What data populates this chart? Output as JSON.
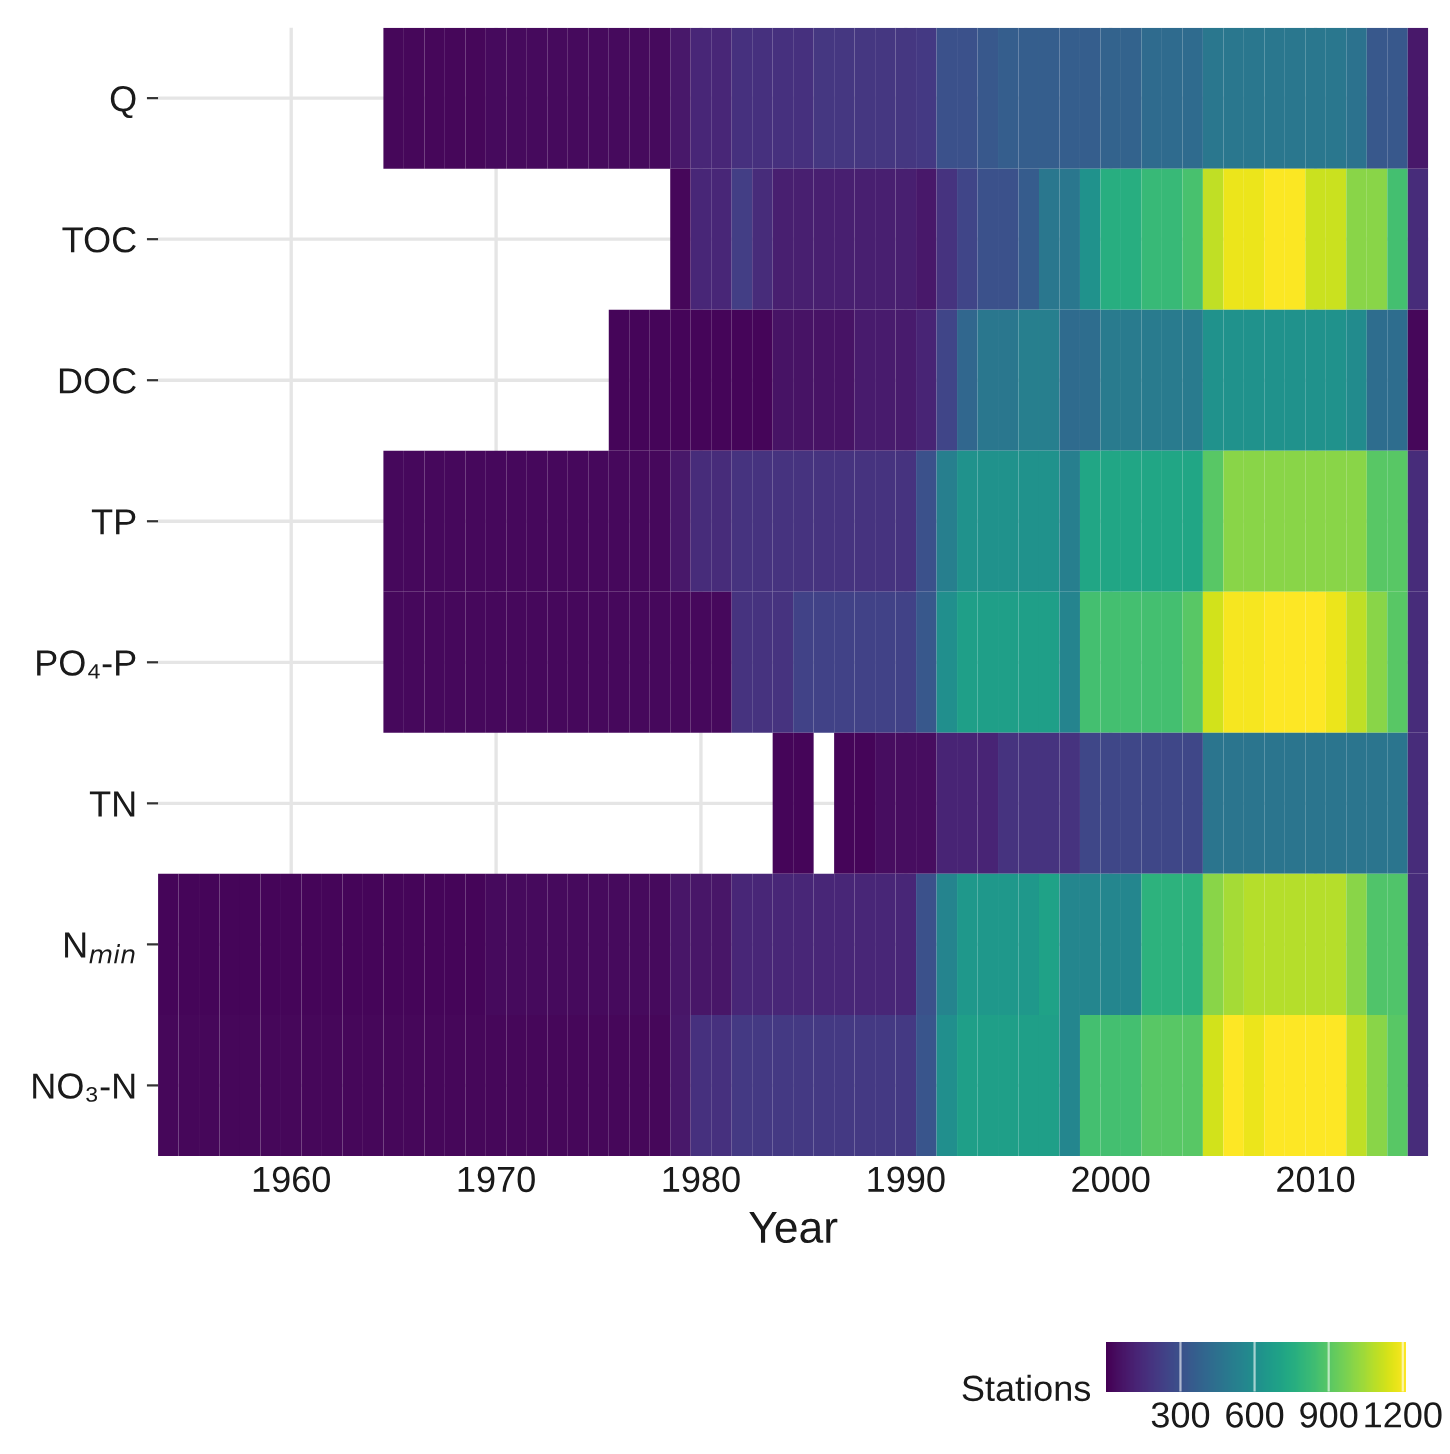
{
  "chart_data": {
    "type": "heatmap",
    "xlabel": "Year",
    "clabel": "Stations",
    "x": [
      1954,
      1955,
      1956,
      1957,
      1958,
      1959,
      1960,
      1961,
      1962,
      1963,
      1964,
      1965,
      1966,
      1967,
      1968,
      1969,
      1970,
      1971,
      1972,
      1973,
      1974,
      1975,
      1976,
      1977,
      1978,
      1979,
      1980,
      1981,
      1982,
      1983,
      1984,
      1985,
      1986,
      1987,
      1988,
      1989,
      1990,
      1991,
      1992,
      1993,
      1994,
      1995,
      1996,
      1997,
      1998,
      1999,
      2000,
      2001,
      2002,
      2003,
      2004,
      2005,
      2006,
      2007,
      2008,
      2009,
      2010,
      2011,
      2012,
      2013,
      2014,
      2015
    ],
    "y_categories": [
      "Q",
      "TOC",
      "DOC",
      "TP",
      "PO₄-P",
      "TN",
      "N$_{min}$",
      "NO₃-N"
    ],
    "cells": [
      [
        null,
        null,
        null,
        null,
        null,
        null,
        null,
        null,
        null,
        null,
        null,
        20,
        20,
        20,
        20,
        20,
        30,
        30,
        30,
        30,
        30,
        30,
        30,
        30,
        30,
        80,
        130,
        130,
        170,
        170,
        170,
        170,
        190,
        190,
        190,
        190,
        190,
        200,
        300,
        300,
        330,
        360,
        360,
        360,
        360,
        360,
        380,
        380,
        420,
        420,
        420,
        480,
        480,
        480,
        480,
        480,
        480,
        480,
        460,
        330,
        330,
        80
      ],
      [
        null,
        null,
        null,
        null,
        null,
        null,
        null,
        null,
        null,
        null,
        null,
        null,
        null,
        null,
        null,
        null,
        null,
        null,
        null,
        null,
        null,
        null,
        null,
        null,
        null,
        20,
        130,
        130,
        220,
        150,
        100,
        100,
        100,
        100,
        100,
        100,
        100,
        80,
        180,
        250,
        300,
        300,
        350,
        480,
        480,
        620,
        760,
        760,
        820,
        820,
        860,
        1100,
        1180,
        1180,
        1210,
        1210,
        1120,
        1120,
        1000,
        1000,
        850,
        150
      ],
      [
        null,
        null,
        null,
        null,
        null,
        null,
        null,
        null,
        null,
        null,
        null,
        null,
        null,
        null,
        null,
        null,
        null,
        null,
        null,
        null,
        null,
        null,
        15,
        15,
        15,
        15,
        15,
        15,
        15,
        15,
        60,
        60,
        60,
        60,
        90,
        90,
        90,
        120,
        250,
        400,
        480,
        480,
        520,
        520,
        420,
        430,
        500,
        500,
        500,
        500,
        500,
        620,
        620,
        620,
        620,
        620,
        620,
        620,
        580,
        430,
        430,
        20
      ],
      [
        null,
        null,
        null,
        null,
        null,
        null,
        null,
        null,
        null,
        null,
        null,
        25,
        25,
        25,
        25,
        25,
        25,
        25,
        25,
        25,
        25,
        25,
        25,
        25,
        25,
        80,
        150,
        150,
        180,
        180,
        180,
        180,
        180,
        180,
        180,
        180,
        180,
        300,
        520,
        620,
        620,
        620,
        620,
        620,
        520,
        720,
        720,
        720,
        720,
        720,
        720,
        900,
        1000,
        1000,
        1000,
        1000,
        1000,
        1000,
        1000,
        900,
        900,
        150
      ],
      [
        null,
        null,
        null,
        null,
        null,
        null,
        null,
        null,
        null,
        null,
        null,
        25,
        25,
        25,
        25,
        25,
        25,
        25,
        25,
        25,
        25,
        25,
        25,
        25,
        25,
        25,
        25,
        25,
        180,
        180,
        180,
        240,
        240,
        240,
        240,
        240,
        240,
        330,
        600,
        680,
        680,
        680,
        680,
        680,
        550,
        850,
        850,
        850,
        850,
        850,
        900,
        1130,
        1200,
        1200,
        1215,
        1215,
        1215,
        1180,
        1100,
        1000,
        900,
        150
      ],
      [
        null,
        null,
        null,
        null,
        null,
        null,
        null,
        null,
        null,
        null,
        null,
        null,
        null,
        null,
        null,
        null,
        null,
        null,
        null,
        null,
        null,
        null,
        null,
        null,
        null,
        null,
        null,
        null,
        null,
        null,
        15,
        15,
        null,
        15,
        15,
        40,
        40,
        40,
        120,
        120,
        120,
        180,
        180,
        180,
        180,
        260,
        260,
        260,
        260,
        260,
        260,
        470,
        470,
        470,
        470,
        470,
        470,
        470,
        470,
        470,
        470,
        150
      ],
      [
        15,
        15,
        15,
        15,
        15,
        15,
        15,
        15,
        15,
        15,
        15,
        15,
        15,
        15,
        15,
        15,
        30,
        30,
        30,
        30,
        30,
        30,
        30,
        30,
        30,
        70,
        70,
        70,
        130,
        130,
        130,
        130,
        130,
        130,
        130,
        130,
        130,
        300,
        550,
        650,
        650,
        650,
        650,
        700,
        560,
        560,
        560,
        560,
        780,
        780,
        780,
        1000,
        1050,
        1080,
        1080,
        1080,
        1080,
        1080,
        1000,
        880,
        880,
        150
      ],
      [
        20,
        20,
        20,
        20,
        20,
        20,
        20,
        20,
        20,
        20,
        20,
        20,
        20,
        20,
        20,
        20,
        20,
        20,
        20,
        20,
        20,
        20,
        20,
        20,
        20,
        80,
        170,
        170,
        200,
        200,
        200,
        200,
        200,
        200,
        200,
        200,
        200,
        320,
        600,
        680,
        680,
        680,
        680,
        680,
        560,
        850,
        850,
        850,
        900,
        900,
        900,
        1130,
        1215,
        1180,
        1215,
        1215,
        1215,
        1215,
        1100,
        1000,
        900,
        150
      ]
    ],
    "xlim": [
      1953.5,
      2015.5
    ],
    "xticks": [
      1960,
      1970,
      1980,
      1990,
      2000,
      2010
    ],
    "clim": [
      0,
      1215
    ],
    "cticks": [
      300,
      600,
      900,
      1200
    ],
    "grid": true
  }
}
